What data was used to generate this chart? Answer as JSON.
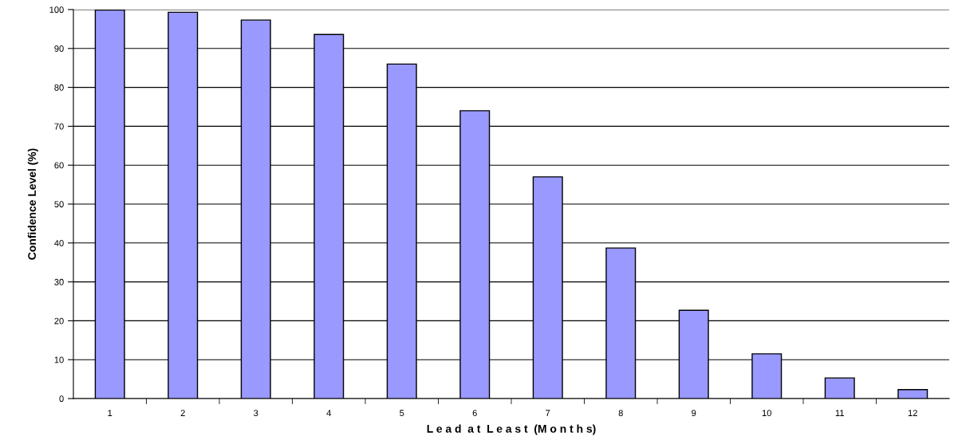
{
  "chart_data": {
    "type": "bar",
    "xlabel": "L e a d  a t  L e a s t  (M o n t h s)",
    "ylabel": "Confidence Level (%)",
    "categories": [
      "1",
      "2",
      "3",
      "4",
      "5",
      "6",
      "7",
      "8",
      "9",
      "10",
      "11",
      "12"
    ],
    "values": [
      99.9,
      99.3,
      97.3,
      93.6,
      86,
      74,
      57,
      38.7,
      22.7,
      11.5,
      5.3,
      2.3
    ],
    "color": "#9999ff",
    "ylim": [
      0,
      100
    ],
    "yticks": [
      0,
      10,
      20,
      30,
      40,
      50,
      60,
      70,
      80,
      90,
      100
    ],
    "grid": "y"
  }
}
